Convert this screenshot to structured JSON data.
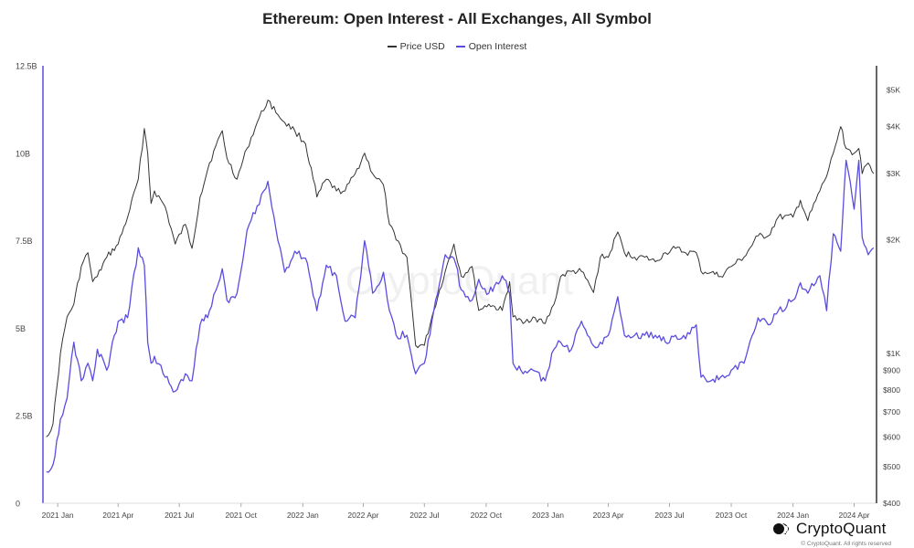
{
  "header": {
    "title": "Ethereum: Open Interest - All Exchanges, All Symbol"
  },
  "legend": [
    {
      "label": "Price USD",
      "color": "#333333"
    },
    {
      "label": "Open Interest",
      "color": "#5b4ce0"
    }
  ],
  "watermark": "CryptoQuant",
  "brand": {
    "name": "CryptoQuant",
    "copyright": "© CryptoQuant. All rights reserved"
  },
  "colors": {
    "price": "#333333",
    "open_interest": "#5b4ce0",
    "axis": "#444444",
    "grid": "#eeeeee"
  },
  "chart_data": {
    "type": "line",
    "title": "Ethereum: Open Interest - All Exchanges, All Symbol",
    "x": [
      "2020-12-15",
      "2020-12-25",
      "2021-01-05",
      "2021-01-15",
      "2021-01-25",
      "2021-02-05",
      "2021-02-15",
      "2021-02-22",
      "2021-03-01",
      "2021-03-15",
      "2021-04-01",
      "2021-04-15",
      "2021-05-01",
      "2021-05-10",
      "2021-05-15",
      "2021-05-20",
      "2021-05-25",
      "2021-06-10",
      "2021-06-25",
      "2021-07-10",
      "2021-07-20",
      "2021-08-01",
      "2021-08-15",
      "2021-09-03",
      "2021-09-10",
      "2021-09-25",
      "2021-10-10",
      "2021-10-25",
      "2021-11-10",
      "2021-11-25",
      "2021-12-05",
      "2021-12-20",
      "2022-01-05",
      "2022-01-22",
      "2022-02-05",
      "2022-02-20",
      "2022-03-05",
      "2022-03-20",
      "2022-04-03",
      "2022-04-15",
      "2022-05-01",
      "2022-05-10",
      "2022-05-20",
      "2022-06-05",
      "2022-06-18",
      "2022-07-01",
      "2022-07-15",
      "2022-08-01",
      "2022-08-14",
      "2022-08-25",
      "2022-09-10",
      "2022-09-20",
      "2022-10-05",
      "2022-10-25",
      "2022-11-05",
      "2022-11-10",
      "2022-11-25",
      "2022-12-10",
      "2022-12-28",
      "2023-01-10",
      "2023-01-20",
      "2023-02-05",
      "2023-02-20",
      "2023-03-10",
      "2023-03-20",
      "2023-04-01",
      "2023-04-15",
      "2023-04-25",
      "2023-05-10",
      "2023-05-25",
      "2023-06-10",
      "2023-06-25",
      "2023-07-10",
      "2023-07-25",
      "2023-08-10",
      "2023-08-17",
      "2023-09-01",
      "2023-09-15",
      "2023-10-01",
      "2023-10-20",
      "2023-11-10",
      "2023-11-25",
      "2023-12-10",
      "2024-01-01",
      "2024-01-12",
      "2024-01-23",
      "2024-02-10",
      "2024-02-20",
      "2024-03-01",
      "2024-03-12",
      "2024-03-20",
      "2024-04-01",
      "2024-04-08",
      "2024-04-13",
      "2024-04-22",
      "2024-04-30"
    ],
    "series": [
      {
        "name": "Price USD",
        "axis": "right",
        "values": [
          600,
          650,
          1000,
          1250,
          1350,
          1700,
          1850,
          1550,
          1600,
          1800,
          1950,
          2300,
          2900,
          3950,
          3400,
          2500,
          2700,
          2450,
          1950,
          2200,
          1900,
          2600,
          3200,
          3900,
          3300,
          2900,
          3500,
          4100,
          4700,
          4300,
          4100,
          3900,
          3600,
          2600,
          2900,
          2700,
          2700,
          3000,
          3400,
          3000,
          2800,
          2200,
          2000,
          1800,
          1050,
          1050,
          1300,
          1650,
          1950,
          1600,
          1700,
          1300,
          1350,
          1300,
          1550,
          1250,
          1200,
          1250,
          1200,
          1350,
          1600,
          1650,
          1650,
          1450,
          1800,
          1800,
          2100,
          1850,
          1800,
          1800,
          1750,
          1850,
          1900,
          1850,
          1850,
          1650,
          1640,
          1600,
          1700,
          1800,
          2050,
          2050,
          2300,
          2300,
          2550,
          2250,
          2700,
          2950,
          3400,
          4000,
          3500,
          3400,
          3500,
          3000,
          3200,
          3000
        ]
      },
      {
        "name": "Open Interest",
        "axis": "left",
        "values": [
          0.9,
          1.1,
          2.4,
          3.0,
          4.6,
          3.5,
          4.0,
          3.5,
          4.4,
          3.8,
          5.2,
          5.3,
          7.3,
          6.8,
          4.6,
          4.0,
          4.2,
          3.6,
          3.2,
          3.7,
          3.5,
          5.1,
          5.5,
          6.7,
          5.8,
          6.0,
          7.8,
          8.5,
          9.2,
          7.5,
          6.6,
          7.2,
          7.0,
          5.5,
          6.8,
          6.5,
          5.2,
          5.3,
          7.5,
          6.0,
          6.6,
          5.5,
          4.8,
          4.8,
          3.7,
          4.0,
          5.5,
          7.1,
          7.0,
          6.1,
          5.8,
          6.4,
          6.0,
          6.5,
          6.0,
          4.0,
          3.7,
          3.8,
          3.5,
          4.4,
          4.6,
          4.4,
          5.2,
          4.5,
          4.6,
          4.8,
          5.9,
          4.8,
          4.8,
          4.8,
          4.8,
          4.6,
          4.8,
          4.7,
          5.1,
          3.6,
          3.5,
          3.6,
          3.8,
          4.0,
          5.3,
          5.1,
          5.5,
          5.8,
          6.3,
          6.0,
          6.5,
          5.5,
          7.7,
          7.2,
          9.8,
          8.4,
          9.8,
          7.6,
          7.1,
          7.3
        ]
      }
    ],
    "y_left": {
      "range": [
        0,
        12.5
      ],
      "ticks": [
        "0",
        "2.5B",
        "5B",
        "7.5B",
        "10B",
        "12.5B"
      ],
      "tick_values": [
        0,
        2.5,
        5,
        7.5,
        10,
        12.5
      ],
      "unit": "B"
    },
    "y_right": {
      "scale": "log",
      "range": [
        400,
        5800
      ],
      "ticks": [
        "$400",
        "$500",
        "$600",
        "$700",
        "$800",
        "$900",
        "$1K",
        "$2K",
        "$3K",
        "$4K",
        "$5K"
      ],
      "tick_values": [
        400,
        500,
        600,
        700,
        800,
        900,
        1000,
        2000,
        3000,
        4000,
        5000
      ]
    },
    "x_ticks": [
      {
        "label": "2021 Jan",
        "date": "2021-01-01"
      },
      {
        "label": "2021 Apr",
        "date": "2021-04-01"
      },
      {
        "label": "2021 Jul",
        "date": "2021-07-01"
      },
      {
        "label": "2021 Oct",
        "date": "2021-10-01"
      },
      {
        "label": "2022 Jan",
        "date": "2022-01-01"
      },
      {
        "label": "2022 Apr",
        "date": "2022-04-01"
      },
      {
        "label": "2022 Jul",
        "date": "2022-07-01"
      },
      {
        "label": "2022 Oct",
        "date": "2022-10-01"
      },
      {
        "label": "2023 Jan",
        "date": "2023-01-01"
      },
      {
        "label": "2023 Apr",
        "date": "2023-04-01"
      },
      {
        "label": "2023 Jul",
        "date": "2023-07-01"
      },
      {
        "label": "2023 Oct",
        "date": "2023-10-01"
      },
      {
        "label": "2024 Jan",
        "date": "2024-01-01"
      },
      {
        "label": "2024 Apr",
        "date": "2024-04-01"
      }
    ],
    "x_range": [
      "2020-12-10",
      "2024-05-03"
    ],
    "grid": false,
    "legend_position": "top-center"
  }
}
